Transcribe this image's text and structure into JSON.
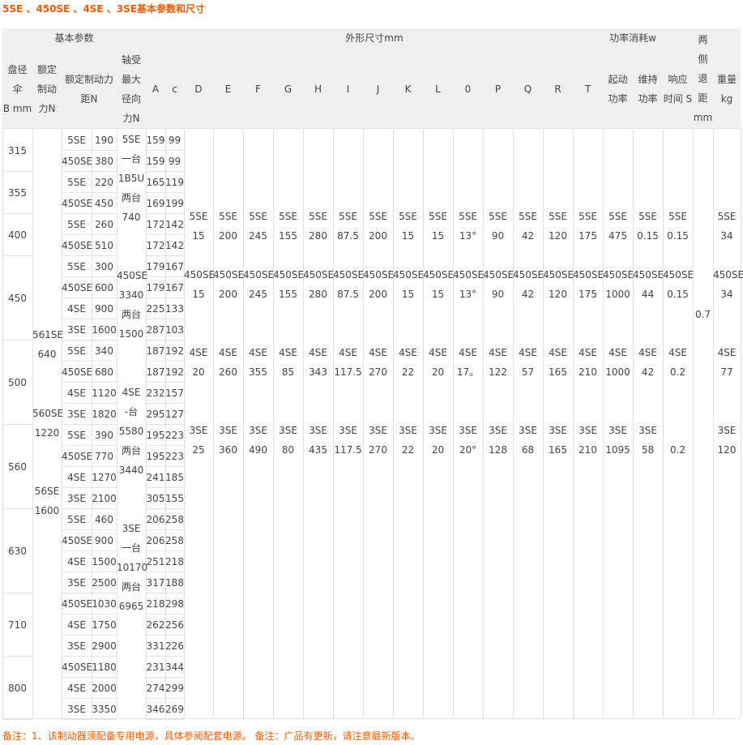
{
  "title": "5SE 、450SE 、4SE 、3SE基本参数和尺寸",
  "group_headers": [
    "基本参数",
    "外形尺寸mm",
    "功率消耗w"
  ],
  "basic_headers": [
    [
      "盘径",
      "伞",
      "B mm"
    ],
    [
      "额定",
      "制动",
      "力N"
    ],
    [
      "额定制动力",
      "距N"
    ],
    [
      "轴受",
      "最大",
      "径向",
      "力N"
    ],
    [
      "A"
    ],
    [
      "c"
    ]
  ],
  "rows": [
    {
      "diameter": "315",
      "entries": [
        {
          "model": "5SE",
          "torque": "190",
          "A": "159",
          "c": "99"
        },
        {
          "model": "450SE",
          "torque": "380",
          "A": "159",
          "c": "99"
        }
      ]
    },
    {
      "diameter": "355",
      "entries": [
        {
          "model": "5SE",
          "torque": "220",
          "A": "165",
          "c": "119"
        },
        {
          "model": "450SE",
          "torque": "450",
          "A": "169",
          "c": "199"
        }
      ]
    },
    {
      "diameter": "400",
      "entries": [
        {
          "model": "5SE",
          "torque": "260",
          "A": "172",
          "c": "142"
        },
        {
          "model": "450SE",
          "torque": "510",
          "A": "172",
          "c": "142"
        }
      ]
    },
    {
      "diameter": "450",
      "entries": [
        {
          "model": "5SE",
          "torque": "300",
          "A": "179",
          "c": "167"
        },
        {
          "model": "450SE",
          "torque": "600",
          "A": "179",
          "c": "167"
        },
        {
          "model": "4SE",
          "torque": "900",
          "A": "225",
          "c": "133"
        },
        {
          "model": "3SE",
          "torque": "1600",
          "A": "287",
          "c": "103"
        }
      ]
    },
    {
      "diameter": "500",
      "entries": [
        {
          "model": "5SE",
          "torque": "340",
          "A": "187",
          "c": "192"
        },
        {
          "model": "450SE",
          "torque": "680",
          "A": "187",
          "c": "192"
        },
        {
          "model": "4SE",
          "torque": "1120",
          "A": "232",
          "c": "157"
        },
        {
          "model": "3SE",
          "torque": "1820",
          "A": "295",
          "c": "127"
        }
      ]
    },
    {
      "diameter": "560",
      "entries": [
        {
          "model": "5SE",
          "torque": "390",
          "A": "195",
          "c": "223"
        },
        {
          "model": "450SE",
          "torque": "770",
          "A": "195",
          "c": "223"
        },
        {
          "model": "4SE",
          "torque": "1270",
          "A": "241",
          "c": "185"
        },
        {
          "model": "3SE",
          "torque": "2100",
          "A": "305",
          "c": "155"
        }
      ]
    },
    {
      "diameter": "630",
      "entries": [
        {
          "model": "5SE",
          "torque": "460",
          "A": "206",
          "c": "258"
        },
        {
          "model": "450SE",
          "torque": "900",
          "A": "206",
          "c": "258"
        },
        {
          "model": "4SE",
          "torque": "1500",
          "A": "251",
          "c": "218"
        },
        {
          "model": "3SE",
          "torque": "2500",
          "A": "317",
          "c": "188"
        }
      ]
    },
    {
      "diameter": "710",
      "entries": [
        {
          "model": "450SE",
          "torque": "1030",
          "A": "218",
          "c": "298"
        },
        {
          "model": "4SE",
          "torque": "1750",
          "A": "262",
          "c": "256"
        },
        {
          "model": "3SE",
          "torque": "2900",
          "A": "331",
          "c": "226"
        }
      ]
    },
    {
      "diameter": "800",
      "entries": [
        {
          "model": "450SE",
          "torque": "1180",
          "A": "231",
          "c": "344"
        },
        {
          "model": "4SE",
          "torque": "2000",
          "A": "274",
          "c": "299"
        },
        {
          "model": "3SE",
          "torque": "3350",
          "A": "346",
          "c": "269"
        }
      ]
    }
  ],
  "rated_force": [
    {
      "model": "561SE",
      "value": "640"
    },
    {
      "model": "560SE",
      "value": "1220"
    },
    {
      "model": "56SE",
      "value": "1600"
    }
  ],
  "radial_force": [
    [
      "5SE",
      "一台",
      "1B5U",
      "两台",
      "740"
    ],
    [
      "450SE",
      "3340",
      "两台",
      "1500"
    ],
    [
      "4SE",
      "-台",
      "5580",
      "两台",
      "3440"
    ],
    [
      "3SE",
      "一台",
      "10170",
      "两台",
      "6965"
    ]
  ],
  "columns": [
    {
      "label": [
        "D"
      ],
      "groups": [
        {
          "model": "5SE",
          "value": "15"
        },
        {
          "model": "450SE",
          "value": "15"
        },
        {
          "model": "4SE",
          "value": "20"
        },
        {
          "model": "3SE",
          "value": "25"
        }
      ]
    },
    {
      "label": [
        "E"
      ],
      "groups": [
        {
          "model": "5SE",
          "value": "200"
        },
        {
          "model": "450SE",
          "value": "200"
        },
        {
          "model": "4SE",
          "value": "260"
        },
        {
          "model": "3SE",
          "value": "360"
        }
      ]
    },
    {
      "label": [
        "F"
      ],
      "groups": [
        {
          "model": "5SE",
          "value": "245"
        },
        {
          "model": "450SE",
          "value": "245"
        },
        {
          "model": "4SE",
          "value": "355"
        },
        {
          "model": "3SE",
          "value": "490"
        }
      ]
    },
    {
      "label": [
        "G"
      ],
      "groups": [
        {
          "model": "5SE",
          "value": "155"
        },
        {
          "model": "450SE",
          "value": "155"
        },
        {
          "model": "4SE",
          "value": "85"
        },
        {
          "model": "3SE",
          "value": "80"
        }
      ]
    },
    {
      "label": [
        "H"
      ],
      "groups": [
        {
          "model": "5SE",
          "value": "280"
        },
        {
          "model": "450SE",
          "value": "280"
        },
        {
          "model": "4SE",
          "value": "343"
        },
        {
          "model": "3SE",
          "value": "435"
        }
      ]
    },
    {
      "label": [
        "I"
      ],
      "groups": [
        {
          "model": "5SE",
          "value": "87.5"
        },
        {
          "model": "450SE",
          "value": "87.5"
        },
        {
          "model": "4SE",
          "value": "117.5"
        },
        {
          "model": "3SE",
          "value": "117.5"
        }
      ]
    },
    {
      "label": [
        "J"
      ],
      "groups": [
        {
          "model": "5SE",
          "value": "200"
        },
        {
          "model": "450SE",
          "value": "200"
        },
        {
          "model": "4SE",
          "value": "270"
        },
        {
          "model": "3SE",
          "value": "270"
        }
      ]
    },
    {
      "label": [
        "K"
      ],
      "groups": [
        {
          "model": "5SE",
          "value": "15"
        },
        {
          "model": "450SE",
          "value": "15"
        },
        {
          "model": "4SE",
          "value": "22"
        },
        {
          "model": "3SE",
          "value": "22"
        }
      ]
    },
    {
      "label": [
        "L"
      ],
      "groups": [
        {
          "model": "5SE",
          "value": "15"
        },
        {
          "model": "450SE",
          "value": "15"
        },
        {
          "model": "4SE",
          "value": "20"
        },
        {
          "model": "3SE",
          "value": "20"
        }
      ]
    },
    {
      "label": [
        "0"
      ],
      "groups": [
        {
          "model": "5SE",
          "value": "13°"
        },
        {
          "model": "450SE",
          "value": "13°"
        },
        {
          "model": "4SE",
          "value": "17。"
        },
        {
          "model": "3SE",
          "value": "20°"
        }
      ]
    },
    {
      "label": [
        "P"
      ],
      "groups": [
        {
          "model": "5SE",
          "value": "90"
        },
        {
          "model": "450SE",
          "value": "90"
        },
        {
          "model": "4SE",
          "value": "122"
        },
        {
          "model": "3SE",
          "value": "128"
        }
      ]
    },
    {
      "label": [
        "Q"
      ],
      "groups": [
        {
          "model": "5SE",
          "value": "42"
        },
        {
          "model": "450SE",
          "value": "42"
        },
        {
          "model": "4SE",
          "value": "57"
        },
        {
          "model": "3SE",
          "value": "68"
        }
      ]
    },
    {
      "label": [
        "R"
      ],
      "groups": [
        {
          "model": "5SE",
          "value": "120"
        },
        {
          "model": "450SE",
          "value": "120"
        },
        {
          "model": "4SE",
          "value": "165"
        },
        {
          "model": "3SE",
          "value": "165"
        }
      ]
    },
    {
      "label": [
        "T"
      ],
      "groups": [
        {
          "model": "5SE",
          "value": "175"
        },
        {
          "model": "450SE",
          "value": "175"
        },
        {
          "model": "4SE",
          "value": "210"
        },
        {
          "model": "3SE",
          "value": "210"
        }
      ]
    },
    {
      "label": [
        "起动",
        "功率"
      ],
      "groups": [
        {
          "model": "5SE",
          "value": "475"
        },
        {
          "model": "450SE",
          "value": "1000"
        },
        {
          "model": "4SE",
          "value": "1000"
        },
        {
          "model": "3SE",
          "value": "1095"
        }
      ]
    },
    {
      "label": [
        "维持",
        "功率"
      ],
      "groups": [
        {
          "model": "5SE",
          "value": "0.15"
        },
        {
          "model": "450SE",
          "value": "44"
        },
        {
          "model": "4SE",
          "value": "42"
        },
        {
          "model": "3SE",
          "value": "58"
        }
      ]
    },
    {
      "label": [
        "响应",
        "时间 S"
      ],
      "groups": [
        {
          "model": "5SE",
          "value": "0.15"
        },
        {
          "model": "450SE",
          "value": "0.15"
        },
        {
          "model": "4SE",
          "value": "0.2"
        },
        {
          "value": "0.2"
        }
      ]
    },
    {
      "label": [
        "两",
        "侧",
        "退",
        "距",
        "mm"
      ],
      "value": "0.7"
    },
    {
      "label": [
        "重量",
        "kg"
      ],
      "groups": [
        {
          "model": "5SE",
          "value": "34"
        },
        {
          "model": "450SE",
          "value": "34"
        },
        {
          "model": "4SE",
          "value": "77"
        },
        {
          "model": "3SE",
          "value": "120"
        }
      ]
    }
  ],
  "note": "备注：1、该制动器须配备专用电源，具体参阅配套电源。 备注：广品有更新，请注意最新版本。"
}
